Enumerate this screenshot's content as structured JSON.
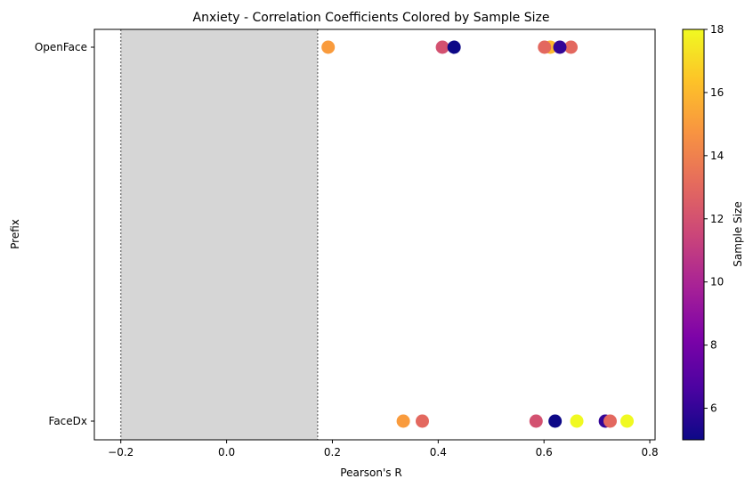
{
  "chart_data": {
    "type": "scatter",
    "title": "Anxiety - Correlation Coefficients Colored by Sample Size",
    "xlabel": "Pearson's R",
    "ylabel": "Prefix",
    "xlim": [
      -0.25,
      0.81
    ],
    "x_ticks": [
      -0.2,
      0.0,
      0.2,
      0.4,
      0.6,
      0.8
    ],
    "x_tick_labels": [
      "−0.2",
      "0.0",
      "0.2",
      "0.4",
      "0.6",
      "0.8"
    ],
    "categories": [
      "OpenFace",
      "FaceDx"
    ],
    "shaded_band": {
      "x_range": [
        -0.2,
        0.172
      ],
      "color": "#d6d6d6"
    },
    "colormap": "plasma",
    "colorbar": {
      "label": "Sample Size",
      "range": [
        5,
        18
      ],
      "ticks": [
        6,
        8,
        10,
        12,
        14,
        16,
        18
      ]
    },
    "points": [
      {
        "category": "OpenFace",
        "x": 0.192,
        "n": 15
      },
      {
        "category": "OpenFace",
        "x": 0.408,
        "n": 12
      },
      {
        "category": "OpenFace",
        "x": 0.43,
        "n": 5
      },
      {
        "category": "OpenFace",
        "x": 0.612,
        "n": 16
      },
      {
        "category": "OpenFace",
        "x": 0.601,
        "n": 13
      },
      {
        "category": "OpenFace",
        "x": 0.651,
        "n": 13
      },
      {
        "category": "OpenFace",
        "x": 0.63,
        "n": 6
      },
      {
        "category": "FaceDx",
        "x": 0.334,
        "n": 15
      },
      {
        "category": "FaceDx",
        "x": 0.37,
        "n": 13
      },
      {
        "category": "FaceDx",
        "x": 0.585,
        "n": 12
      },
      {
        "category": "FaceDx",
        "x": 0.621,
        "n": 5
      },
      {
        "category": "FaceDx",
        "x": 0.662,
        "n": 18
      },
      {
        "category": "FaceDx",
        "x": 0.716,
        "n": 6
      },
      {
        "category": "FaceDx",
        "x": 0.725,
        "n": 13
      },
      {
        "category": "FaceDx",
        "x": 0.757,
        "n": 18
      }
    ],
    "grid": false,
    "legend": "none"
  }
}
